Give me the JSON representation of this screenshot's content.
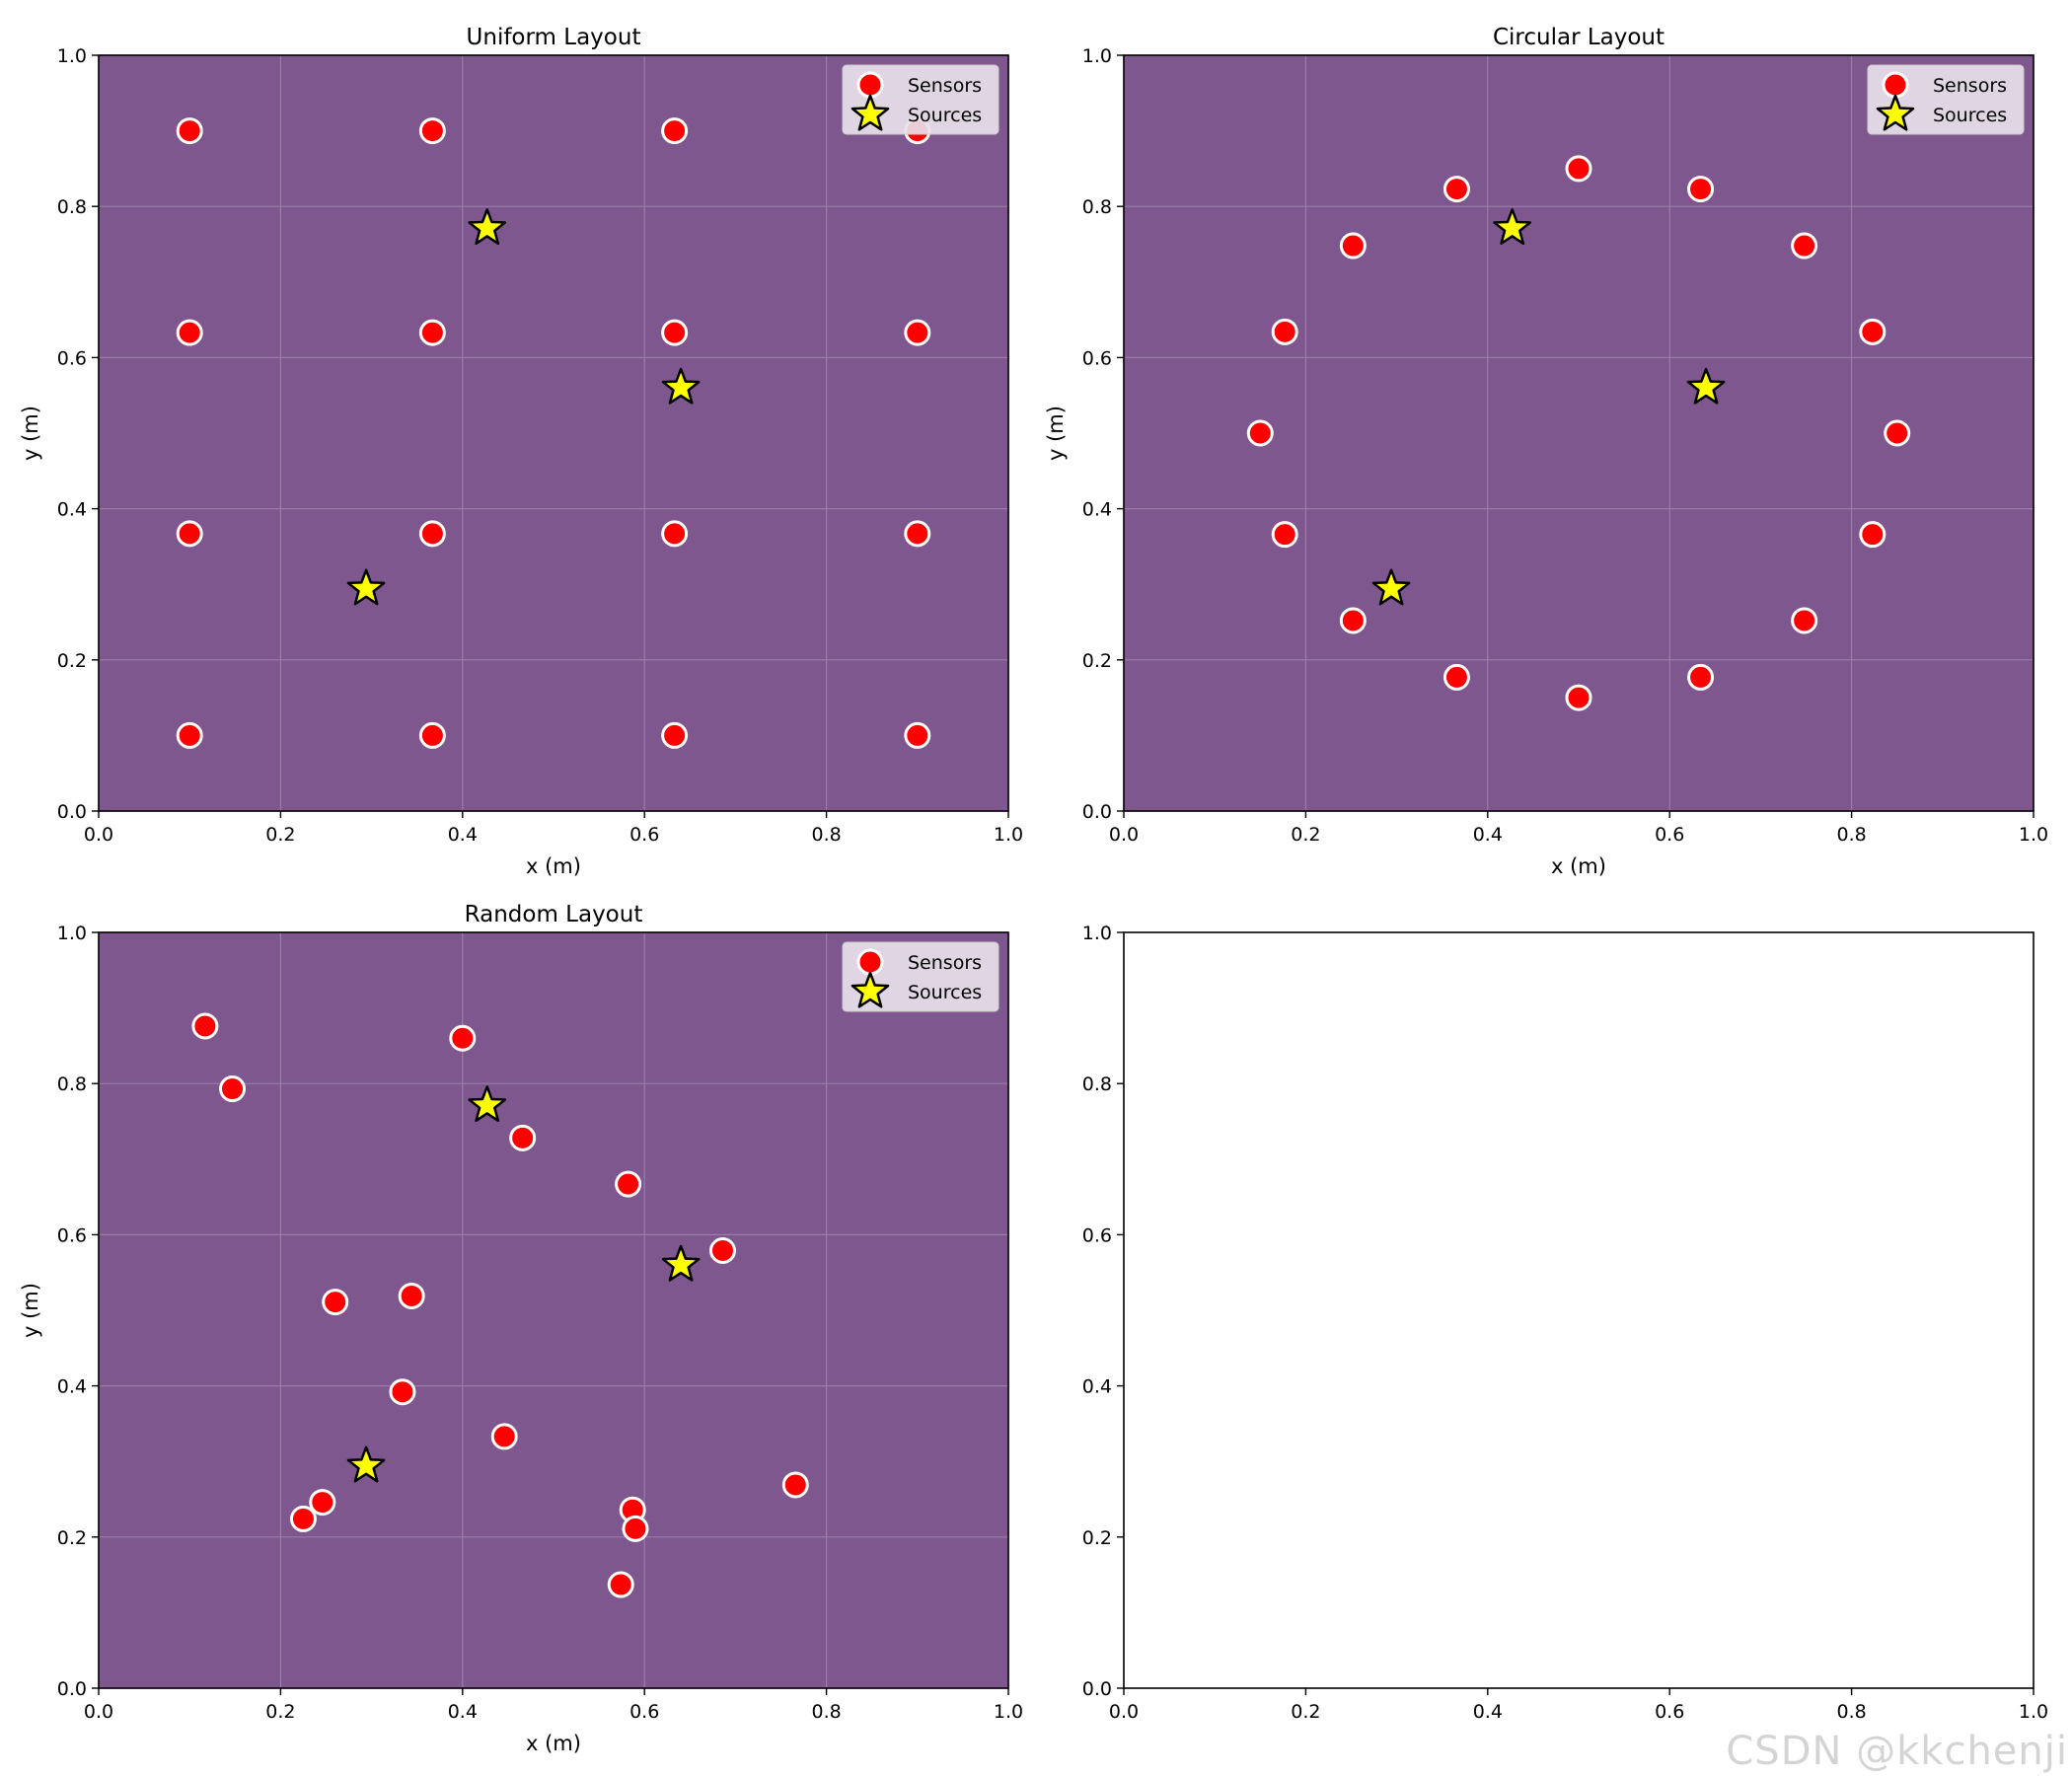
{
  "figure": {
    "watermark": "CSDN @kkchenji"
  },
  "colors": {
    "panel_bg": "#7e578f",
    "grid": "#9a7da8",
    "sensor_fill": "#ff0000",
    "sensor_edge": "#ffffff",
    "source_fill": "#ffff00",
    "source_edge": "#000000",
    "legend_bg": "#e8dfe9"
  },
  "chart_data": [
    {
      "type": "scatter",
      "title": "Uniform Layout",
      "xlabel": "x (m)",
      "ylabel": "y (m)",
      "xlim": [
        0,
        1
      ],
      "ylim": [
        0,
        1
      ],
      "xticks": [
        "0.0",
        "0.2",
        "0.4",
        "0.6",
        "0.8",
        "1.0"
      ],
      "yticks": [
        "0.0",
        "0.2",
        "0.4",
        "0.6",
        "0.8",
        "1.0"
      ],
      "grid": true,
      "background": true,
      "legend": "top-right",
      "legend_entries": [
        "Sensors",
        "Sources"
      ],
      "series": [
        {
          "name": "Sensors",
          "marker": "circle",
          "points": [
            [
              0.1,
              0.9
            ],
            [
              0.367,
              0.9
            ],
            [
              0.633,
              0.9
            ],
            [
              0.9,
              0.9
            ],
            [
              0.1,
              0.633
            ],
            [
              0.367,
              0.633
            ],
            [
              0.633,
              0.633
            ],
            [
              0.9,
              0.633
            ],
            [
              0.1,
              0.367
            ],
            [
              0.367,
              0.367
            ],
            [
              0.633,
              0.367
            ],
            [
              0.9,
              0.367
            ],
            [
              0.1,
              0.1
            ],
            [
              0.367,
              0.1
            ],
            [
              0.633,
              0.1
            ],
            [
              0.9,
              0.1
            ]
          ]
        },
        {
          "name": "Sources",
          "marker": "star",
          "points": [
            [
              0.427,
              0.771
            ],
            [
              0.64,
              0.56
            ],
            [
              0.294,
              0.294
            ]
          ]
        }
      ]
    },
    {
      "type": "scatter",
      "title": "Circular Layout",
      "xlabel": "x (m)",
      "ylabel": "y (m)",
      "xlim": [
        0,
        1
      ],
      "ylim": [
        0,
        1
      ],
      "xticks": [
        "0.0",
        "0.2",
        "0.4",
        "0.6",
        "0.8",
        "1.0"
      ],
      "yticks": [
        "0.0",
        "0.2",
        "0.4",
        "0.6",
        "0.8",
        "1.0"
      ],
      "grid": true,
      "background": true,
      "legend": "top-right",
      "legend_entries": [
        "Sensors",
        "Sources"
      ],
      "series": [
        {
          "name": "Sensors",
          "marker": "circle",
          "points": [
            [
              0.85,
              0.5
            ],
            [
              0.823,
              0.634
            ],
            [
              0.748,
              0.748
            ],
            [
              0.634,
              0.823
            ],
            [
              0.5,
              0.85
            ],
            [
              0.366,
              0.823
            ],
            [
              0.252,
              0.748
            ],
            [
              0.177,
              0.634
            ],
            [
              0.15,
              0.5
            ],
            [
              0.177,
              0.366
            ],
            [
              0.252,
              0.252
            ],
            [
              0.366,
              0.177
            ],
            [
              0.5,
              0.15
            ],
            [
              0.634,
              0.177
            ],
            [
              0.748,
              0.252
            ],
            [
              0.823,
              0.366
            ]
          ]
        },
        {
          "name": "Sources",
          "marker": "star",
          "points": [
            [
              0.427,
              0.771
            ],
            [
              0.64,
              0.56
            ],
            [
              0.294,
              0.294
            ]
          ]
        }
      ]
    },
    {
      "type": "scatter",
      "title": "Random Layout",
      "xlabel": "x (m)",
      "ylabel": "y (m)",
      "xlim": [
        0,
        1
      ],
      "ylim": [
        0,
        1
      ],
      "xticks": [
        "0.0",
        "0.2",
        "0.4",
        "0.6",
        "0.8",
        "1.0"
      ],
      "yticks": [
        "0.0",
        "0.2",
        "0.4",
        "0.6",
        "0.8",
        "1.0"
      ],
      "grid": true,
      "background": true,
      "legend": "top-right",
      "legend_entries": [
        "Sensors",
        "Sources"
      ],
      "series": [
        {
          "name": "Sensors",
          "marker": "circle",
          "points": [
            [
              0.117,
              0.876
            ],
            [
              0.147,
              0.793
            ],
            [
              0.4,
              0.86
            ],
            [
              0.466,
              0.728
            ],
            [
              0.582,
              0.667
            ],
            [
              0.686,
              0.579
            ],
            [
              0.26,
              0.511
            ],
            [
              0.344,
              0.519
            ],
            [
              0.334,
              0.392
            ],
            [
              0.446,
              0.333
            ],
            [
              0.246,
              0.246
            ],
            [
              0.225,
              0.224
            ],
            [
              0.587,
              0.236
            ],
            [
              0.59,
              0.211
            ],
            [
              0.574,
              0.137
            ],
            [
              0.766,
              0.269
            ]
          ]
        },
        {
          "name": "Sources",
          "marker": "star",
          "points": [
            [
              0.427,
              0.771
            ],
            [
              0.64,
              0.56
            ],
            [
              0.294,
              0.294
            ]
          ]
        }
      ]
    },
    {
      "type": "scatter",
      "title": "",
      "xlabel": "",
      "ylabel": "",
      "xlim": [
        0,
        1
      ],
      "ylim": [
        0,
        1
      ],
      "xticks": [
        "0.0",
        "0.2",
        "0.4",
        "0.6",
        "0.8",
        "1.0"
      ],
      "yticks": [
        "0.0",
        "0.2",
        "0.4",
        "0.6",
        "0.8",
        "1.0"
      ],
      "grid": false,
      "background": false,
      "legend": "none",
      "legend_entries": [],
      "series": []
    }
  ]
}
